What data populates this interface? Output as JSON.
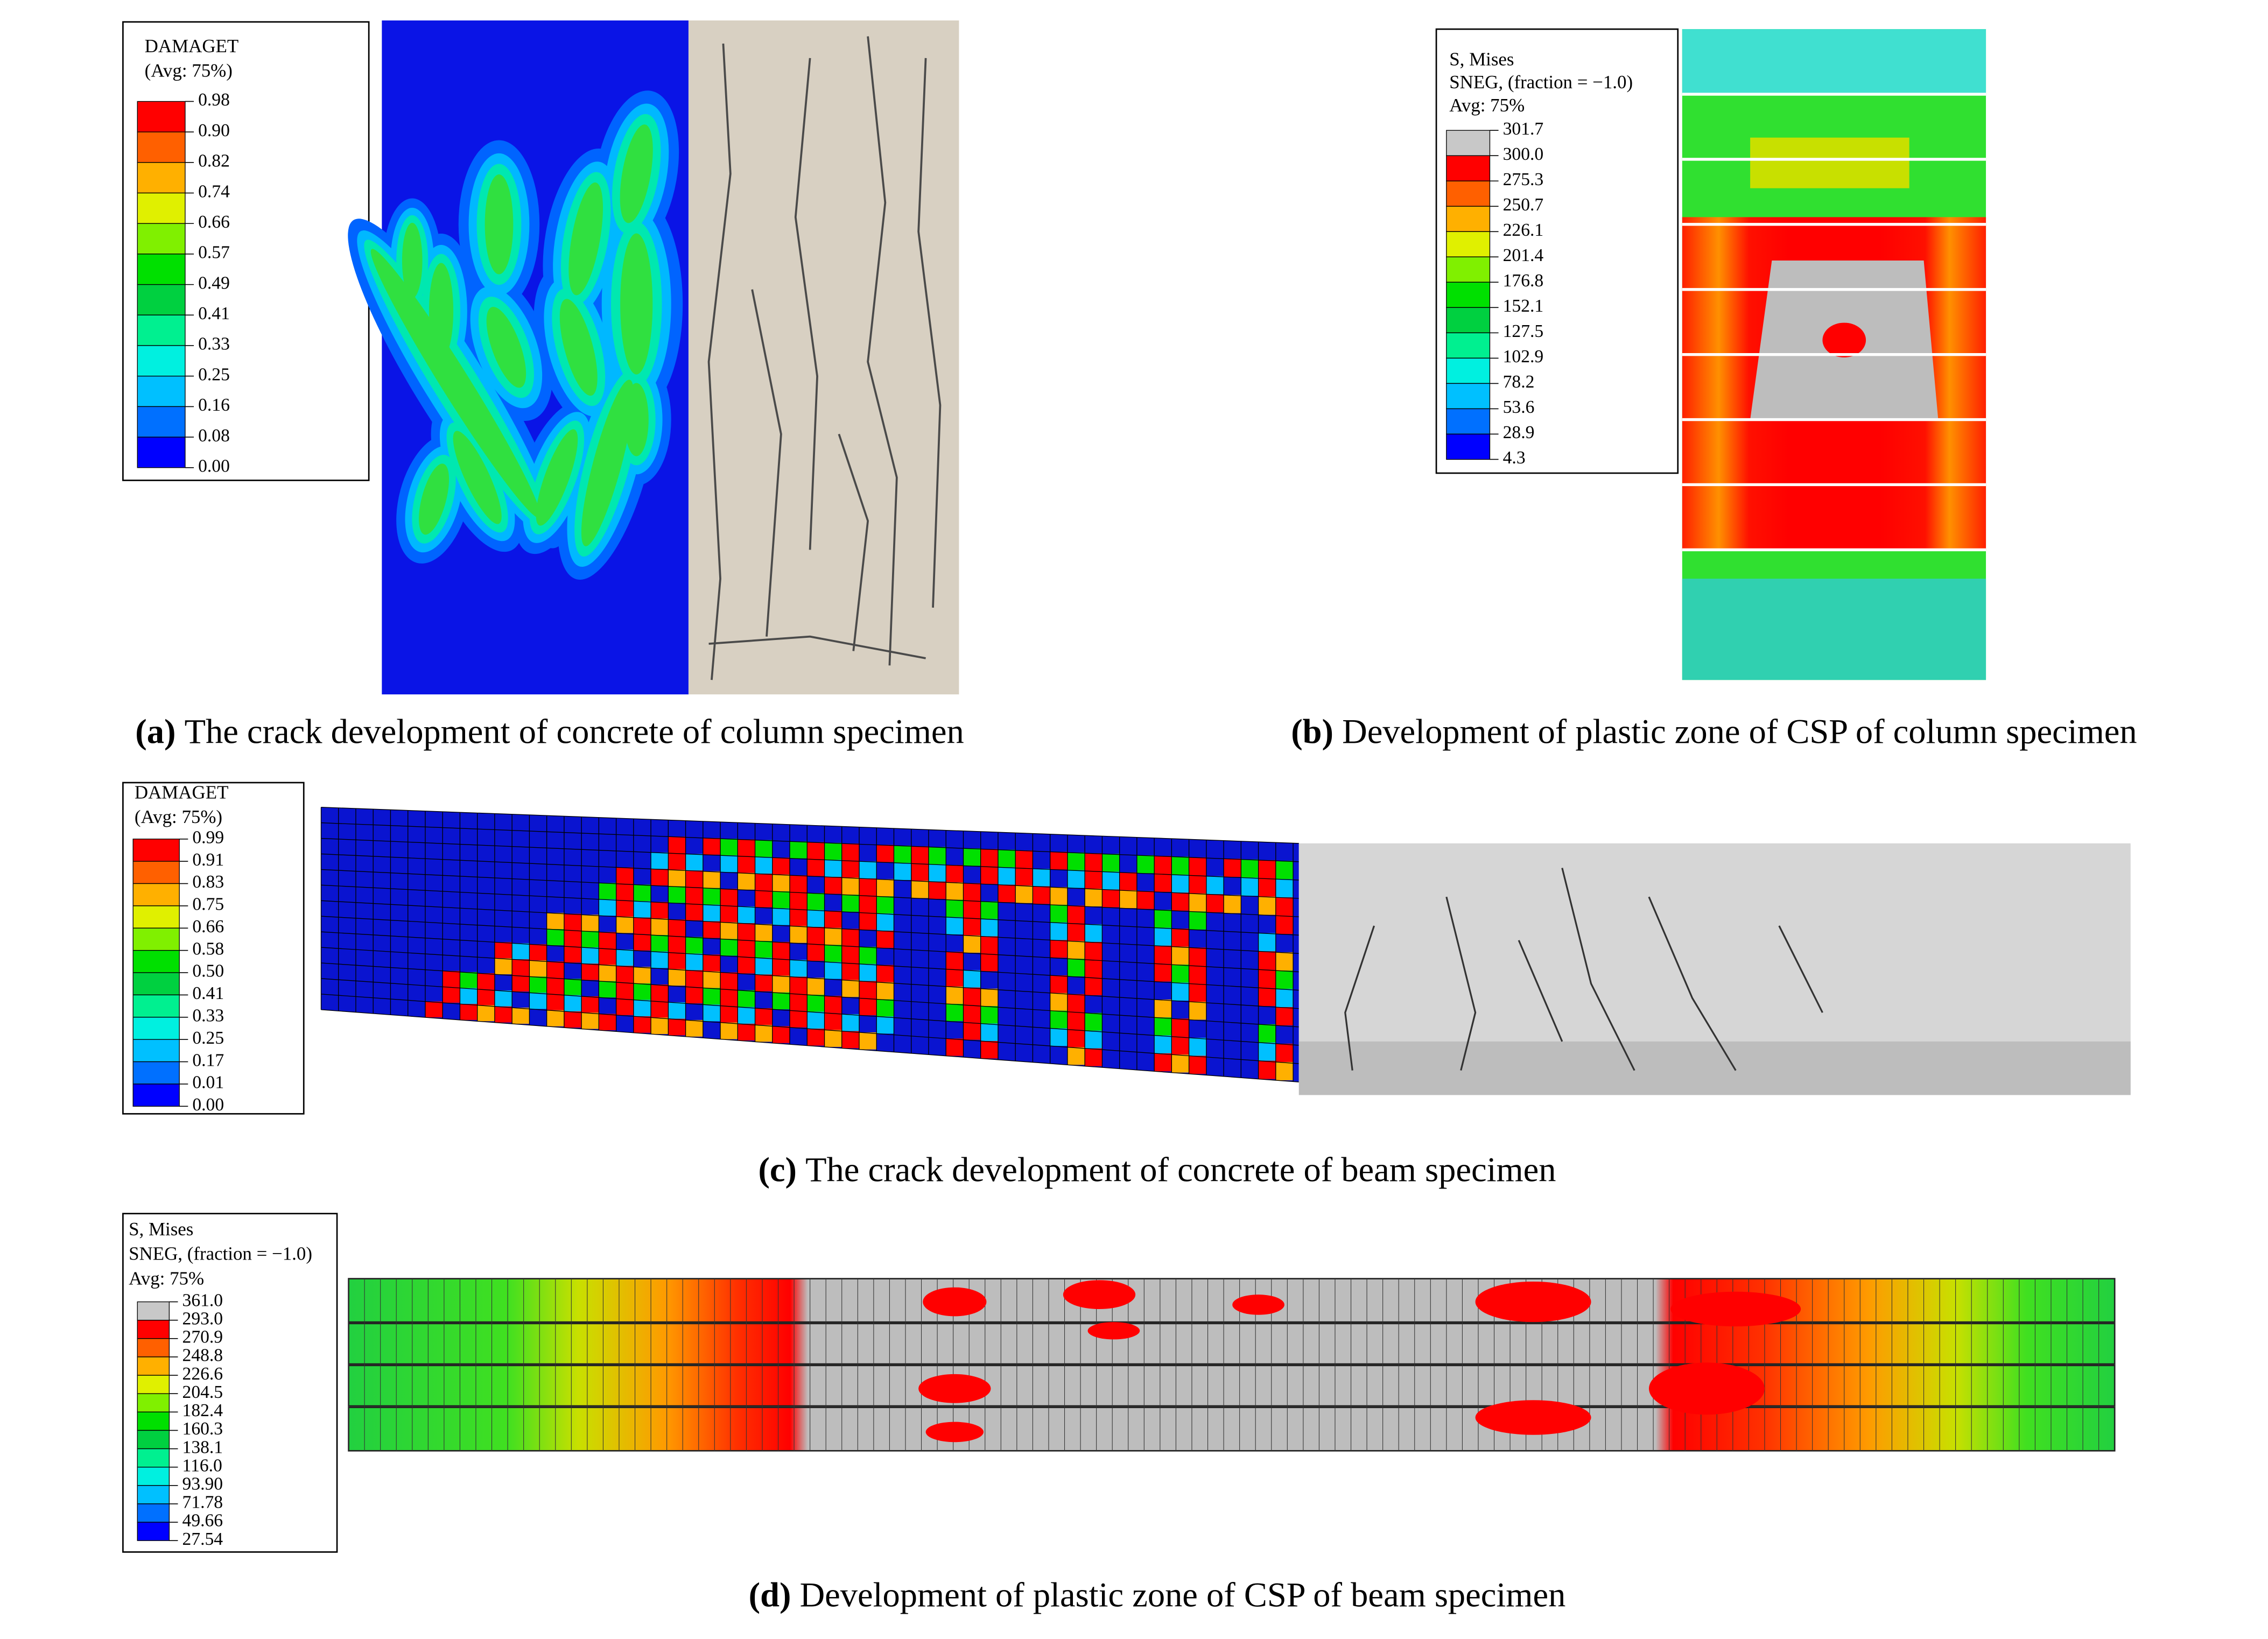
{
  "panels": [
    {
      "label": "(a)",
      "caption": "The crack development of concrete of column specimen",
      "legend": {
        "title": [
          "DAMAGET",
          "(Avg: 75%)"
        ],
        "values": [
          "0.98",
          "0.90",
          "0.82",
          "0.74",
          "0.66",
          "0.57",
          "0.49",
          "0.41",
          "0.33",
          "0.25",
          "0.16",
          "0.08",
          "0.00"
        ]
      }
    },
    {
      "label": "(b)",
      "caption": "Development of plastic zone of CSP of column specimen",
      "legend": {
        "title": [
          "S, Mises",
          "SNEG, (fraction = −1.0)",
          "Avg: 75%"
        ],
        "values": [
          "301.7",
          "300.0",
          "275.3",
          "250.7",
          "226.1",
          "201.4",
          "176.8",
          "152.1",
          "127.5",
          "102.9",
          "78.2",
          "53.6",
          "28.9",
          "4.3"
        ]
      }
    },
    {
      "label": "(c)",
      "caption": "The crack development of concrete of beam specimen",
      "legend": {
        "title": [
          "DAMAGET",
          "(Avg: 75%)"
        ],
        "values": [
          "0.99",
          "0.91",
          "0.83",
          "0.75",
          "0.66",
          "0.58",
          "0.50",
          "0.41",
          "0.33",
          "0.25",
          "0.17",
          "0.01",
          "0.00"
        ]
      }
    },
    {
      "label": "(d)",
      "caption": "Development of plastic zone of CSP of beam specimen",
      "legend": {
        "title": [
          "S, Mises",
          "SNEG, (fraction = −1.0)",
          "Avg: 75%"
        ],
        "values": [
          "361.0",
          "293.0",
          "270.9",
          "248.8",
          "226.6",
          "204.5",
          "182.4",
          "160.3",
          "138.1",
          "116.0",
          "93.90",
          "71.78",
          "49.66",
          "27.54"
        ]
      }
    }
  ]
}
